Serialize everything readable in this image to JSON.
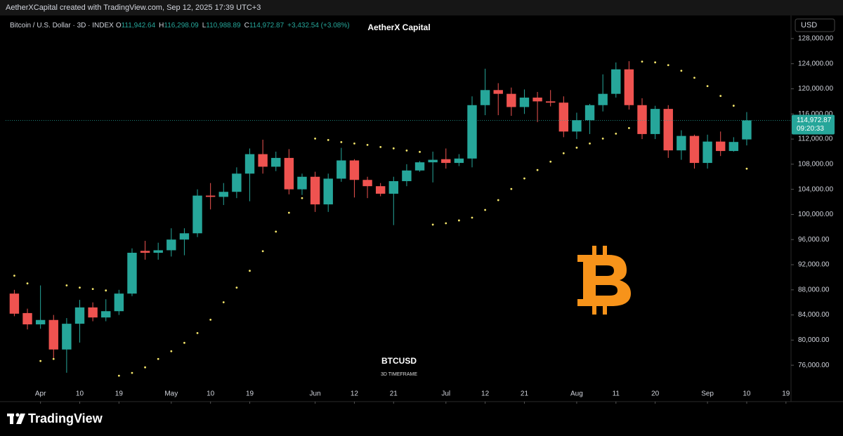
{
  "top_bar": "AetherXCapital created with TradingView.com, Sep 12, 2025 17:39 UTC+3",
  "footer": "TradingView",
  "chart_data": {
    "type": "candlestick",
    "title": "AetherX Capital",
    "symbol": "Bitcoin / U.S. Dollar · 3D · INDEX",
    "ohlc_legend": [
      {
        "key": "O",
        "value": "111,942.64"
      },
      {
        "key": "H",
        "value": "116,298.09"
      },
      {
        "key": "L",
        "value": "110,988.89"
      },
      {
        "key": "C",
        "value": "114,972.87"
      }
    ],
    "change": "+3,432.54 (+3.08%)",
    "watermark": "BTCUSD",
    "watermark_sub": "3D TIMEFRAME",
    "currency": "USD",
    "last_price_label": "114,972.87",
    "countdown": "09:20:33",
    "up_color": "#26a69a",
    "down_color": "#ef5350",
    "x": [
      "Mar 26",
      "Mar 29",
      "Apr 1",
      "Apr 4",
      "Apr 7",
      "Apr 10",
      "Apr 13",
      "Apr 16",
      "Apr 19",
      "Apr 22",
      "Apr 25",
      "Apr 28",
      "May 1",
      "May 4",
      "May 7",
      "May 10",
      "May 13",
      "May 16",
      "May 19",
      "May 22",
      "May 25",
      "May 28",
      "May 31",
      "Jun 3",
      "Jun 6",
      "Jun 9",
      "Jun 12",
      "Jun 15",
      "Jun 18",
      "Jun 21",
      "Jun 24",
      "Jun 27",
      "Jun 30",
      "Jul 3",
      "Jul 6",
      "Jul 9",
      "Jul 12",
      "Jul 15",
      "Jul 18",
      "Jul 21",
      "Jul 24",
      "Jul 27",
      "Jul 30",
      "Aug 2",
      "Aug 5",
      "Aug 8",
      "Aug 11",
      "Aug 14",
      "Aug 17",
      "Aug 20",
      "Aug 23",
      "Aug 26",
      "Aug 29",
      "Sep 1",
      "Sep 4",
      "Sep 7",
      "Sep 10"
    ],
    "open": [
      87400,
      84300,
      82500,
      83200,
      78500,
      82600,
      85200,
      83600,
      84600,
      87400,
      94200,
      93900,
      94300,
      96000,
      97000,
      103000,
      102800,
      103600,
      106500,
      109600,
      107600,
      109000,
      104000,
      106000,
      101600,
      105700,
      108600,
      105500,
      104500,
      103300,
      105300,
      107000,
      108300,
      108800,
      108200,
      108900,
      117400,
      119800,
      119200,
      117100,
      118600,
      118000,
      117800,
      113200,
      115000,
      117400,
      119200,
      123100,
      117400,
      112800,
      116800,
      110200,
      112500,
      108200,
      111600,
      110100,
      111942.64
    ],
    "high": [
      88000,
      85000,
      88700,
      84000,
      83500,
      86400,
      86000,
      86500,
      88000,
      94600,
      95800,
      95500,
      97800,
      97800,
      104000,
      105000,
      105000,
      107500,
      110500,
      111900,
      110000,
      110400,
      106500,
      106800,
      106500,
      110600,
      108800,
      106000,
      105000,
      106000,
      108000,
      108500,
      110000,
      110500,
      109600,
      118800,
      123200,
      120900,
      120200,
      119900,
      119500,
      119800,
      118800,
      116200,
      117600,
      122300,
      124200,
      124400,
      118500,
      117300,
      117400,
      113400,
      112700,
      112700,
      113200,
      112300,
      116298.09
    ],
    "low": [
      83800,
      81700,
      81800,
      77000,
      74800,
      79600,
      83000,
      83000,
      84000,
      87000,
      92800,
      92800,
      93300,
      93500,
      96400,
      100800,
      101500,
      102600,
      102100,
      106500,
      106900,
      103200,
      103100,
      100400,
      100400,
      105200,
      102700,
      102600,
      102900,
      98300,
      104500,
      106800,
      105100,
      107300,
      107700,
      107500,
      115800,
      115800,
      115700,
      116000,
      114700,
      117200,
      112300,
      112000,
      112800,
      116400,
      118600,
      116700,
      112000,
      112000,
      109000,
      108700,
      107300,
      107300,
      109300,
      110000,
      110988.89
    ],
    "close": [
      84200,
      82500,
      83200,
      78500,
      82600,
      85200,
      83600,
      84600,
      87400,
      93900,
      93900,
      94300,
      96000,
      97000,
      103000,
      102800,
      103600,
      106500,
      109600,
      107600,
      109000,
      104000,
      106000,
      101600,
      105700,
      108600,
      105500,
      104500,
      103300,
      105300,
      107000,
      108300,
      108700,
      108200,
      108900,
      117400,
      119800,
      119200,
      117100,
      118600,
      118000,
      117800,
      113200,
      115000,
      117400,
      119200,
      123100,
      117400,
      112800,
      116800,
      110200,
      112500,
      108200,
      111600,
      110100,
      111540,
      114972.87
    ],
    "sar": {
      "color": "#f5e66b",
      "values": [
        90250,
        89020,
        76670,
        77000,
        88700,
        88350,
        88130,
        87900,
        74330,
        74770,
        75660,
        77000,
        78230,
        79560,
        81120,
        83240,
        86020,
        88350,
        91030,
        94150,
        97270,
        100270,
        102600,
        112080,
        111850,
        111520,
        111300,
        111070,
        110740,
        110520,
        110180,
        109960,
        98380,
        98600,
        99050,
        99490,
        100720,
        102280,
        104060,
        105730,
        107070,
        108400,
        109740,
        110630,
        111300,
        112080,
        112860,
        113750,
        124330,
        124210,
        123770,
        122880,
        121760,
        120430,
        118870,
        117310,
        107290
      ]
    },
    "xlim": [
      "Mar 24",
      "Sep 20"
    ],
    "xticks": [
      {
        "value": "Apr 1",
        "label": "Apr"
      },
      {
        "value": "Apr 10",
        "label": "10"
      },
      {
        "value": "Apr 19",
        "label": "19"
      },
      {
        "value": "May 1",
        "label": "May"
      },
      {
        "value": "May 10",
        "label": "10"
      },
      {
        "value": "May 19",
        "label": "19"
      },
      {
        "value": "Jun 3",
        "label": "Jun"
      },
      {
        "value": "Jun 12",
        "label": "12"
      },
      {
        "value": "Jun 21",
        "label": "21"
      },
      {
        "value": "Jul 3",
        "label": "Jul"
      },
      {
        "value": "Jul 12",
        "label": "12"
      },
      {
        "value": "Jul 21",
        "label": "21"
      },
      {
        "value": "Aug 2",
        "label": "Aug"
      },
      {
        "value": "Aug 11",
        "label": "11"
      },
      {
        "value": "Aug 20",
        "label": "20"
      },
      {
        "value": "Sep 1",
        "label": "Sep"
      },
      {
        "value": "Sep 10",
        "label": "10"
      },
      {
        "value": "Sep 19",
        "label": "19"
      }
    ],
    "ylim": [
      70430,
      131680
    ],
    "yticks": [
      {
        "value": 76000,
        "label": "76,000.00"
      },
      {
        "value": 80000,
        "label": "80,000.00"
      },
      {
        "value": 84000,
        "label": "84,000.00"
      },
      {
        "value": 88000,
        "label": "88,000.00"
      },
      {
        "value": 92000,
        "label": "92,000.00"
      },
      {
        "value": 96000,
        "label": "96,000.00"
      },
      {
        "value": 100000,
        "label": "100,000.00"
      },
      {
        "value": 104000,
        "label": "104,000.00"
      },
      {
        "value": 108000,
        "label": "108,000.00"
      },
      {
        "value": 112000,
        "label": "112,000.00"
      },
      {
        "value": 116000,
        "label": "116,000.00"
      },
      {
        "value": 120000,
        "label": "120,000.00"
      },
      {
        "value": 124000,
        "label": "124,000.00"
      },
      {
        "value": 128000,
        "label": "128,000.00"
      }
    ]
  }
}
